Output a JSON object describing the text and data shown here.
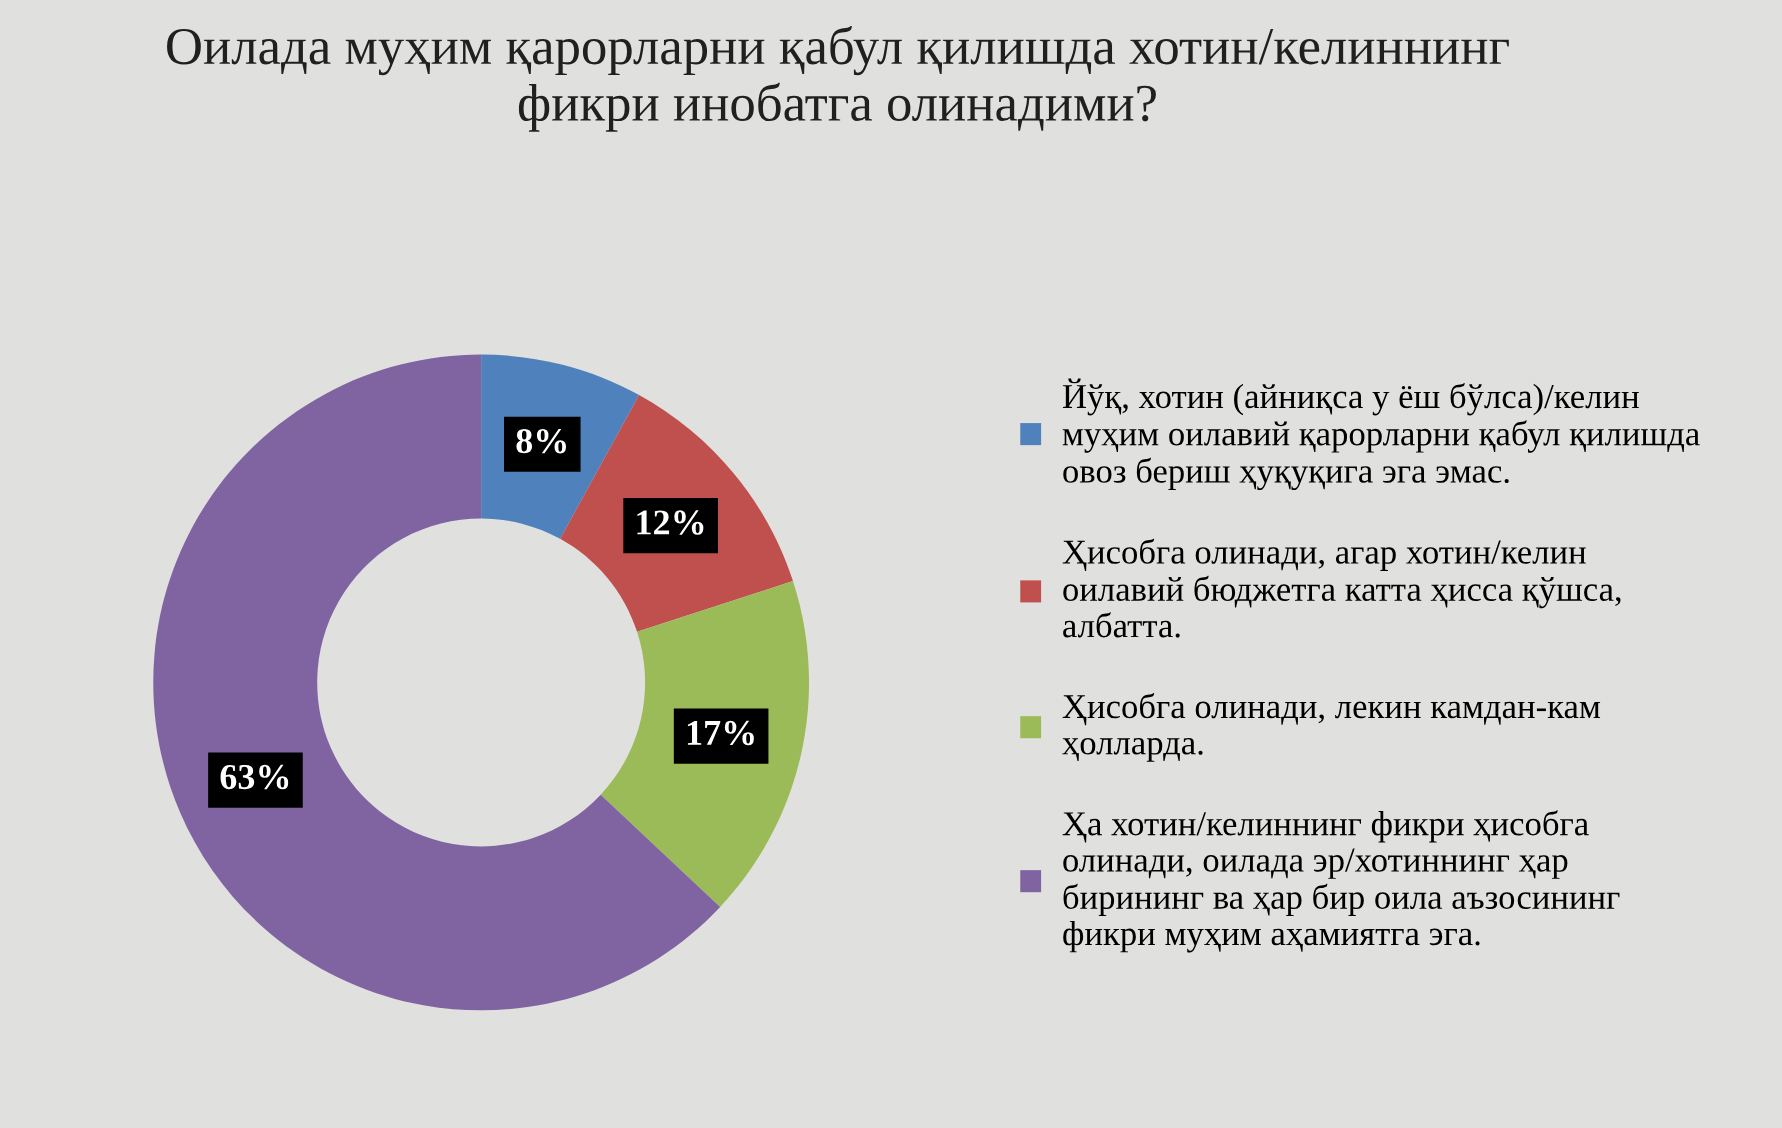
{
  "chart_data": {
    "type": "donut",
    "title": "Оилада муҳим қарорларни қабул қилишда хотин/келиннинг\nфикри инобатга олинадими?",
    "categories": [
      "Йўқ, хотин (айниқса у ёш бўлса)/келин\nмуҳим оилавий қарорларни қабул қилишда\nовоз бериш ҳуқуқига эга эмас.",
      "Ҳисобга олинади, агар хотин/келин\nоилавий бюджетга катта ҳисса қўшса,\nалбатта.",
      "Ҳисобга олинади, лекин камдан-кам\nҳолларда.",
      "Ҳа хотин/келиннинг фикри ҳисобга\nолинади, оилада эр/хотиннинг ҳар\nбирининг ва ҳар бир оила аъзосининг\nфикри муҳим аҳамиятга эга."
    ],
    "values": [
      8,
      12,
      17,
      63
    ],
    "value_labels": [
      "8%",
      "12%",
      "17%",
      "63%"
    ],
    "colors": [
      "#4f81bd",
      "#c0504d",
      "#9bbb59",
      "#8064a2"
    ],
    "legend": "right"
  }
}
